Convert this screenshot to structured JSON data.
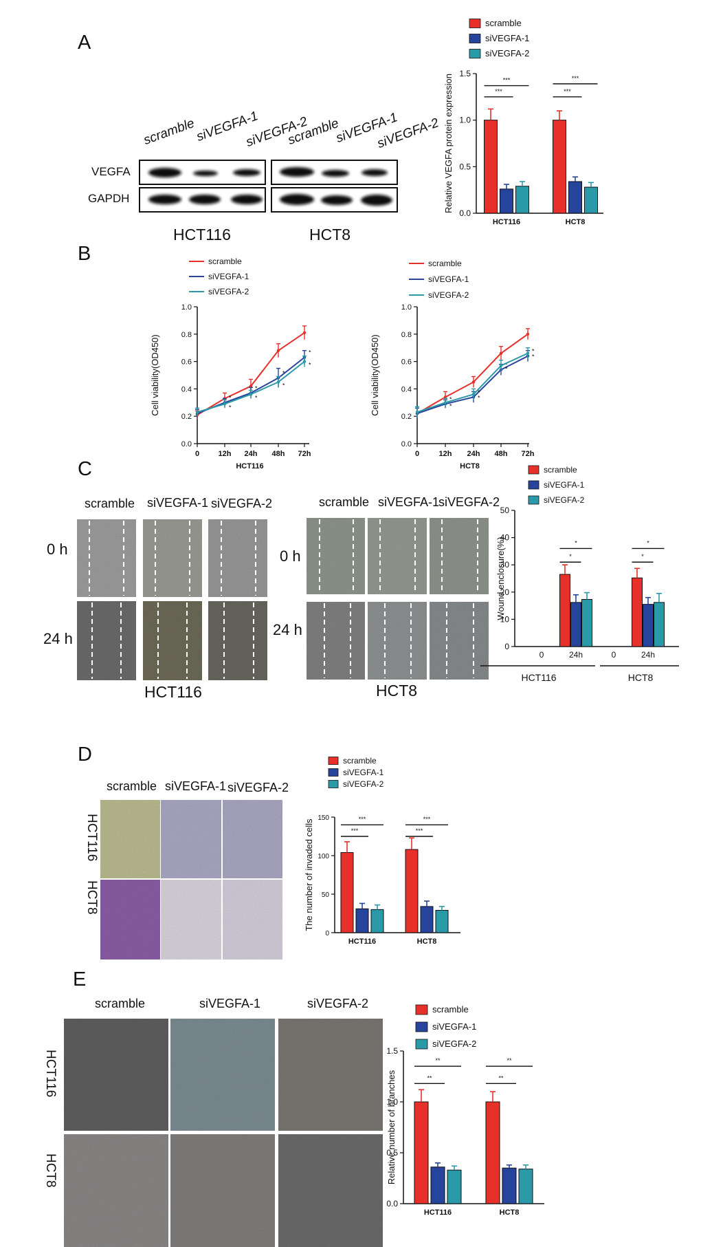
{
  "panels": {
    "A": {
      "label": "A",
      "blot": {
        "lanes_left": [
          "scramble",
          "siVEGFA-1",
          "siVEGFA-2"
        ],
        "lanes_right": [
          "scramble",
          "siVEGFA-1",
          "siVEGFA-2"
        ],
        "rows": [
          "VEGFA",
          "GAPDH"
        ],
        "cells": [
          "HCT116",
          "HCT8"
        ]
      }
    },
    "B": {
      "label": "B"
    },
    "C": {
      "label": "C",
      "left": {
        "cols": [
          "scramble",
          "siVEGFA-1",
          "siVEGFA-2"
        ],
        "rows": [
          "0 h",
          "24 h"
        ],
        "cell": "HCT116"
      },
      "right": {
        "cols": [
          "scramble",
          "siVEGFA-1",
          "siVEGFA-2"
        ],
        "rows": [
          "0 h",
          "24 h"
        ],
        "cell": "HCT8"
      }
    },
    "D": {
      "label": "D",
      "cols": [
        "scramble",
        "siVEGFA-1",
        "siVEGFA-2"
      ],
      "rows": [
        "HCT116",
        "HCT8"
      ]
    },
    "E": {
      "label": "E",
      "cols": [
        "scramble",
        "siVEGFA-1",
        "siVEGFA-2"
      ],
      "rows": [
        "HCT116",
        "HCT8"
      ]
    }
  },
  "colors": {
    "scramble": "#e8302a",
    "siVEGFA-1": "#27449c",
    "siVEGFA-2": "#2a9aa8"
  },
  "chart_data": [
    {
      "id": "A",
      "type": "bar",
      "ylabel": "Relative VEGFA protein expression",
      "ylim": [
        0,
        1.5
      ],
      "yticks": [
        0.0,
        0.5,
        1.0,
        1.5
      ],
      "categories": [
        "HCT116",
        "HCT8"
      ],
      "legend": [
        "scramble",
        "siVEGFA-1",
        "siVEGFA-2"
      ],
      "series": [
        {
          "name": "scramble",
          "values": [
            1.0,
            1.0
          ],
          "errors": [
            0.12,
            0.1
          ]
        },
        {
          "name": "siVEGFA-1",
          "values": [
            0.26,
            0.34
          ],
          "errors": [
            0.05,
            0.05
          ]
        },
        {
          "name": "siVEGFA-2",
          "values": [
            0.29,
            0.28
          ],
          "errors": [
            0.05,
            0.05
          ]
        }
      ],
      "sig": [
        {
          "cat": 0,
          "a": 0,
          "b": 1,
          "y": 1.25,
          "label": "***"
        },
        {
          "cat": 0,
          "a": 0,
          "b": 2,
          "y": 1.37,
          "label": "***"
        },
        {
          "cat": 1,
          "a": 0,
          "b": 1,
          "y": 1.25,
          "label": "***"
        },
        {
          "cat": 1,
          "a": 0,
          "b": 2,
          "y": 1.39,
          "label": "***"
        }
      ]
    },
    {
      "id": "B1",
      "type": "line",
      "xlabel": "HCT116",
      "ylabel": "Cell viability(OD450)",
      "x": [
        "0",
        "12h",
        "24h",
        "48h",
        "72h"
      ],
      "ylim": [
        0.0,
        1.0
      ],
      "yticks": [
        0.0,
        0.2,
        0.4,
        0.6,
        0.8,
        1.0
      ],
      "legend": [
        "scramble",
        "siVEGFA-1",
        "siVEGFA-2"
      ],
      "series": [
        {
          "name": "scramble",
          "values": [
            0.21,
            0.33,
            0.42,
            0.68,
            0.81
          ],
          "errors": [
            0.03,
            0.04,
            0.05,
            0.05,
            0.05
          ]
        },
        {
          "name": "siVEGFA-1",
          "values": [
            0.22,
            0.3,
            0.37,
            0.48,
            0.63
          ],
          "errors": [
            0.03,
            0.03,
            0.04,
            0.07,
            0.05
          ]
        },
        {
          "name": "siVEGFA-2",
          "values": [
            0.23,
            0.29,
            0.36,
            0.45,
            0.6
          ],
          "errors": [
            0.03,
            0.03,
            0.03,
            0.04,
            0.04
          ]
        }
      ],
      "marks": "*"
    },
    {
      "id": "B2",
      "type": "line",
      "xlabel": "HCT8",
      "ylabel": "Cell viability(OD450)",
      "x": [
        "0",
        "12h",
        "24h",
        "48h",
        "72h"
      ],
      "ylim": [
        0.0,
        1.0
      ],
      "yticks": [
        0.0,
        0.2,
        0.4,
        0.6,
        0.8,
        1.0
      ],
      "legend": [
        "scramble",
        "siVEGFA-1",
        "siVEGFA-2"
      ],
      "series": [
        {
          "name": "scramble",
          "values": [
            0.22,
            0.34,
            0.45,
            0.66,
            0.8
          ],
          "errors": [
            0.04,
            0.04,
            0.04,
            0.05,
            0.04
          ]
        },
        {
          "name": "siVEGFA-1",
          "values": [
            0.22,
            0.29,
            0.34,
            0.54,
            0.64
          ],
          "errors": [
            0.04,
            0.03,
            0.04,
            0.04,
            0.04
          ]
        },
        {
          "name": "siVEGFA-2",
          "values": [
            0.23,
            0.3,
            0.36,
            0.57,
            0.66
          ],
          "errors": [
            0.04,
            0.03,
            0.04,
            0.04,
            0.04
          ]
        }
      ],
      "marks": "*"
    },
    {
      "id": "C",
      "type": "bar",
      "ylabel": "Wound enclosure(%)",
      "ylim": [
        0,
        50
      ],
      "yticks": [
        0,
        10,
        20,
        30,
        40,
        50
      ],
      "categories": [
        "0",
        "24h",
        "0",
        "24h"
      ],
      "groups": [
        "HCT116",
        "HCT8"
      ],
      "legend": [
        "scramble",
        "siVEGFA-1",
        "siVEGFA-2"
      ],
      "series": [
        {
          "name": "scramble",
          "values": [
            0,
            26.5,
            0,
            25.2
          ],
          "errors": [
            0,
            3.5,
            0,
            3.5
          ]
        },
        {
          "name": "siVEGFA-1",
          "values": [
            0,
            16.2,
            0,
            15.5
          ],
          "errors": [
            0,
            2.8,
            0,
            2.5
          ]
        },
        {
          "name": "siVEGFA-2",
          "values": [
            0,
            17.3,
            0,
            16.2
          ],
          "errors": [
            0,
            2.5,
            0,
            3.3
          ]
        }
      ],
      "sig": [
        {
          "cat": 1,
          "a": 0,
          "b": 1,
          "y": 31,
          "label": "*"
        },
        {
          "cat": 1,
          "a": 0,
          "b": 2,
          "y": 36,
          "label": "*"
        },
        {
          "cat": 3,
          "a": 0,
          "b": 1,
          "y": 31,
          "label": "*"
        },
        {
          "cat": 3,
          "a": 0,
          "b": 2,
          "y": 36,
          "label": "*"
        }
      ]
    },
    {
      "id": "D",
      "type": "bar",
      "ylabel": "The number of invaded cells",
      "ylim": [
        0,
        150
      ],
      "yticks": [
        0,
        50,
        100,
        150
      ],
      "categories": [
        "HCT116",
        "HCT8"
      ],
      "legend": [
        "scramble",
        "siVEGFA-1",
        "siVEGFA-2"
      ],
      "series": [
        {
          "name": "scramble",
          "values": [
            104,
            108
          ],
          "errors": [
            14,
            15
          ]
        },
        {
          "name": "siVEGFA-1",
          "values": [
            31,
            34
          ],
          "errors": [
            7,
            7
          ]
        },
        {
          "name": "siVEGFA-2",
          "values": [
            30,
            29
          ],
          "errors": [
            6,
            5
          ]
        }
      ],
      "sig": [
        {
          "cat": 0,
          "a": 0,
          "b": 1,
          "y": 125,
          "label": "***"
        },
        {
          "cat": 0,
          "a": 0,
          "b": 2,
          "y": 140,
          "label": "***"
        },
        {
          "cat": 1,
          "a": 0,
          "b": 1,
          "y": 125,
          "label": "***"
        },
        {
          "cat": 1,
          "a": 0,
          "b": 2,
          "y": 140,
          "label": "***"
        }
      ]
    },
    {
      "id": "E",
      "type": "bar",
      "ylabel": "Relative number of branches",
      "ylim": [
        0,
        1.5
      ],
      "yticks": [
        0.0,
        0.5,
        1.0,
        1.5
      ],
      "categories": [
        "HCT116",
        "HCT8"
      ],
      "legend": [
        "scramble",
        "siVEGFA-1",
        "siVEGFA-2"
      ],
      "series": [
        {
          "name": "scramble",
          "values": [
            1.0,
            1.0
          ],
          "errors": [
            0.12,
            0.1
          ]
        },
        {
          "name": "siVEGFA-1",
          "values": [
            0.36,
            0.35
          ],
          "errors": [
            0.04,
            0.03
          ]
        },
        {
          "name": "siVEGFA-2",
          "values": [
            0.33,
            0.34
          ],
          "errors": [
            0.04,
            0.04
          ]
        }
      ],
      "sig": [
        {
          "cat": 0,
          "a": 0,
          "b": 1,
          "y": 1.18,
          "label": "**"
        },
        {
          "cat": 0,
          "a": 0,
          "b": 2,
          "y": 1.35,
          "label": "**"
        },
        {
          "cat": 1,
          "a": 0,
          "b": 1,
          "y": 1.18,
          "label": "**"
        },
        {
          "cat": 1,
          "a": 0,
          "b": 2,
          "y": 1.35,
          "label": "**"
        }
      ]
    }
  ]
}
